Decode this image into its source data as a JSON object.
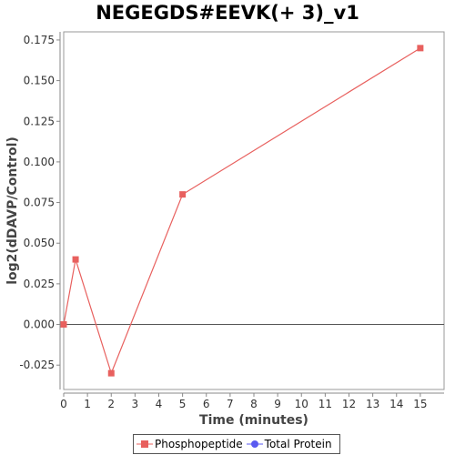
{
  "chart_data": {
    "type": "line",
    "title": "NEGEGDS#EEVK(+ 3)_v1",
    "xlabel": "Time (minutes)",
    "ylabel": "log2(dDAVP/Control)",
    "xlim": [
      0,
      16
    ],
    "ylim": [
      -0.04,
      0.18
    ],
    "x_ticks": [
      0,
      1,
      2,
      3,
      4,
      5,
      6,
      7,
      8,
      9,
      10,
      11,
      12,
      13,
      14,
      15
    ],
    "y_ticks": [
      -0.025,
      0.0,
      0.025,
      0.05,
      0.075,
      0.1,
      0.125,
      0.15,
      0.175
    ],
    "y_tick_labels": [
      "-0.025",
      "0.000",
      "0.025",
      "0.050",
      "0.075",
      "0.100",
      "0.125",
      "0.150",
      "0.175"
    ],
    "zero_line": true,
    "grid": false,
    "legend_position": "bottom-center",
    "series": [
      {
        "name": "Phosphopeptide",
        "color": "#e8605e",
        "marker": "square",
        "x": [
          0,
          0.5,
          2,
          5,
          15
        ],
        "y": [
          0.0,
          0.04,
          -0.03,
          0.08,
          0.17
        ]
      },
      {
        "name": "Total Protein",
        "color": "#5a5af0",
        "marker": "circle",
        "x": [],
        "y": []
      }
    ]
  }
}
